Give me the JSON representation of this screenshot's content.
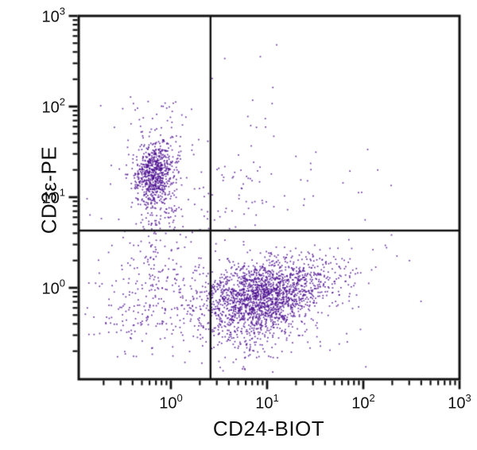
{
  "figure": {
    "background": "#ffffff",
    "dot_color": "#4e1191",
    "axis_color": "#111111"
  },
  "chart_data": {
    "type": "scatter",
    "title": "",
    "xlabel": "CD24-BIOT",
    "ylabel": "CD3ε-PE",
    "x_scale": "log",
    "y_scale": "log",
    "x_range_log10": [
      -0.958,
      3.0
    ],
    "y_range_log10": [
      -1.009,
      3.0
    ],
    "tick_base": "10",
    "x_tick_exponents": [
      0,
      1,
      2,
      3
    ],
    "y_tick_exponents": [
      0,
      1,
      2,
      3
    ],
    "grid": false,
    "legend": "none",
    "quadrant_gate": {
      "x_value": 2.6,
      "y_value": 4.3,
      "x_log10": 0.412,
      "y_log10": 0.631
    },
    "populations": [
      {
        "name": "t-cells-main",
        "distribution": "gaussian",
        "center_log10": [
          -0.17,
          1.26
        ],
        "sigma_log10": [
          0.105,
          0.165
        ],
        "corr": 0.05,
        "count": 680
      },
      {
        "name": "t-cells-lower-tail",
        "distribution": "gaussian",
        "center_log10": [
          -0.13,
          0.7
        ],
        "sigma_log10": [
          0.13,
          0.27
        ],
        "corr": 0.0,
        "count": 120
      },
      {
        "name": "t-cells-upper-plume",
        "distribution": "gaussian",
        "center_log10": [
          -0.12,
          1.72
        ],
        "sigma_log10": [
          0.15,
          0.22
        ],
        "corr": 0.0,
        "count": 50
      },
      {
        "name": "b-cells-main",
        "distribution": "gaussian",
        "center_log10": [
          0.93,
          -0.1
        ],
        "sigma_log10": [
          0.3,
          0.2
        ],
        "corr": 0.25,
        "count": 1700
      },
      {
        "name": "b-cells-right-tail",
        "distribution": "gaussian",
        "center_log10": [
          1.52,
          0.06
        ],
        "sigma_log10": [
          0.24,
          0.18
        ],
        "corr": 0.2,
        "count": 150
      },
      {
        "name": "b-cells-lower-tail",
        "distribution": "gaussian",
        "center_log10": [
          0.95,
          -0.52
        ],
        "sigma_log10": [
          0.3,
          0.17
        ],
        "corr": 0.1,
        "count": 150
      },
      {
        "name": "double-negative-scatter",
        "distribution": "gaussian",
        "center_log10": [
          -0.15,
          -0.12
        ],
        "sigma_log10": [
          0.34,
          0.3
        ],
        "corr": 0.1,
        "count": 240
      },
      {
        "name": "double-positive-sparse",
        "distribution": "gaussian",
        "center_log10": [
          0.62,
          0.95
        ],
        "sigma_log10": [
          0.4,
          0.3
        ],
        "corr": 0.0,
        "count": 75
      },
      {
        "name": "background",
        "distribution": "uniform",
        "extent_log10": [
          [
            -0.9,
            2.3
          ],
          [
            -0.95,
            2.1
          ]
        ],
        "count": 90
      }
    ],
    "outliers_log10": [
      [
        1.1,
        2.68
      ],
      [
        0.93,
        2.55
      ],
      [
        0.56,
        2.53
      ],
      [
        0.43,
        2.31
      ],
      [
        1.06,
        2.21
      ],
      [
        0.85,
        2.07
      ],
      [
        0.8,
        1.89
      ],
      [
        0.83,
        1.79
      ],
      [
        0.89,
        1.77
      ],
      [
        0.215,
        1.97
      ],
      [
        1.85,
        0.53
      ],
      [
        2.1,
        0.42
      ],
      [
        2.35,
        0.35
      ],
      [
        2.48,
        0.3
      ],
      [
        1.95,
        1.05
      ],
      [
        1.3,
        1.45
      ],
      [
        2.6,
        -0.15
      ],
      [
        1.75,
        -0.62
      ],
      [
        0.05,
        2.05
      ],
      [
        -0.45,
        1.55
      ],
      [
        -0.62,
        1.35
      ],
      [
        1.42,
        1.18
      ],
      [
        2.15,
        1.3
      ]
    ]
  }
}
